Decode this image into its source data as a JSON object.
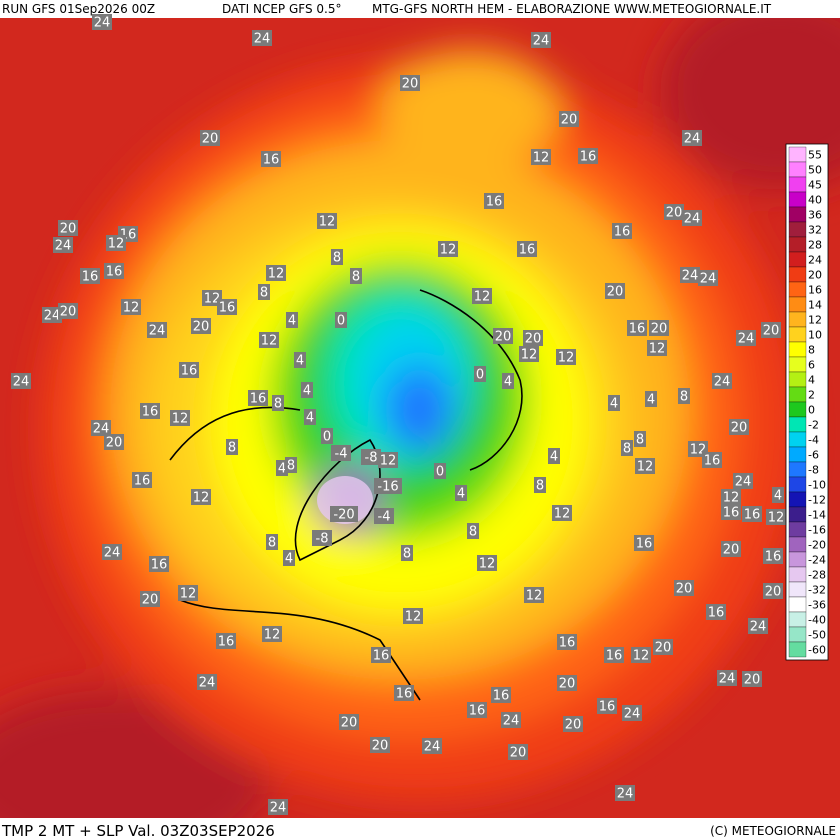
{
  "header": {
    "run": "RUN GFS 01Sep2026 00Z",
    "source": "DATI NCEP GFS 0.5°",
    "credit": "MTG-GFS NORTH HEM - ELABORAZIONE WWW.METEOGIORNALE.IT"
  },
  "footer": {
    "title": "TMP 2 MT + SLP Val. 03Z03SEP2026",
    "copyright": "(C) METEOGIORNALE"
  },
  "legend": {
    "values": [
      55,
      50,
      45,
      40,
      36,
      32,
      28,
      24,
      20,
      16,
      14,
      12,
      10,
      8,
      6,
      4,
      2,
      0,
      -2,
      -4,
      -6,
      -8,
      -10,
      -12,
      -14,
      -16,
      -20,
      -24,
      -28,
      -32,
      -36,
      -40,
      -50,
      -60
    ],
    "colors": [
      "#ffb4ff",
      "#ff80ff",
      "#f040f0",
      "#c800c8",
      "#a00064",
      "#a01e3c",
      "#b41e28",
      "#d21e1e",
      "#f03c14",
      "#ff6414",
      "#ff8c14",
      "#ffb41e",
      "#ffd21e",
      "#ffff00",
      "#e6ff1e",
      "#b4f014",
      "#64dc14",
      "#1ec81e",
      "#00e6b4",
      "#00d2f0",
      "#00aaff",
      "#1e78ff",
      "#1e46e6",
      "#1414b4",
      "#3c1e8c",
      "#6e3ca0",
      "#a064be",
      "#c896dc",
      "#e6c8f0",
      "#f0e6fa",
      "#ffffff",
      "#c8f0e6",
      "#96e6c8",
      "#64dca0"
    ]
  },
  "map": {
    "labels": [
      24,
      24,
      24,
      20,
      20,
      20,
      16,
      12,
      16,
      24,
      16,
      20,
      24,
      20,
      16,
      24,
      12,
      12,
      16,
      12,
      16,
      8,
      12,
      16,
      16,
      8,
      24,
      24,
      12,
      8,
      16,
      12,
      20,
      24,
      20,
      12,
      24,
      20,
      4,
      0,
      12,
      20,
      20,
      16,
      20,
      20,
      24,
      12,
      12,
      12,
      16,
      4,
      0,
      4,
      24,
      24,
      16,
      8,
      4,
      4,
      4,
      8,
      16,
      12,
      24,
      20,
      0,
      8,
      4,
      8,
      8,
      12,
      16,
      20,
      4,
      -4,
      -8,
      12,
      4,
      8,
      12,
      0,
      -16,
      16,
      8,
      4,
      12,
      24,
      4,
      12,
      16,
      16,
      12,
      -20,
      -4,
      12,
      8,
      8,
      -8,
      4,
      8,
      24,
      16,
      16,
      20,
      16,
      12,
      12,
      20,
      12,
      20,
      20,
      16,
      12,
      16,
      12,
      16,
      24,
      16,
      16,
      12,
      20,
      20,
      24,
      16,
      16,
      16,
      24,
      20,
      16,
      24,
      20,
      24,
      20,
      20,
      24,
      20,
      24,
      24
    ]
  }
}
